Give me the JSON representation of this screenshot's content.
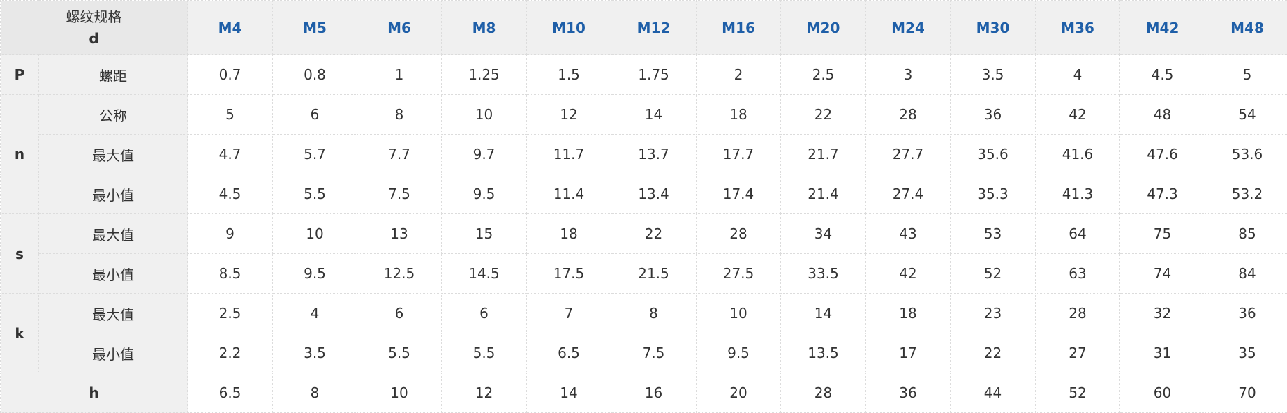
{
  "header": {
    "corner_line1": "螺纹规格",
    "corner_line2": "d",
    "sizes": [
      "M4",
      "M5",
      "M6",
      "M8",
      "M10",
      "M12",
      "M16",
      "M20",
      "M24",
      "M30",
      "M36",
      "M42",
      "M48"
    ]
  },
  "rows": {
    "p": {
      "group": "P",
      "label": "螺距",
      "values": [
        "0.7",
        "0.8",
        "1",
        "1.25",
        "1.5",
        "1.75",
        "2",
        "2.5",
        "3",
        "3.5",
        "4",
        "4.5",
        "5"
      ]
    },
    "n_nominal": {
      "group": "n",
      "label": "公称",
      "values": [
        "5",
        "6",
        "8",
        "10",
        "12",
        "14",
        "18",
        "22",
        "28",
        "36",
        "42",
        "48",
        "54"
      ]
    },
    "n_max": {
      "label": "最大值",
      "values": [
        "4.7",
        "5.7",
        "7.7",
        "9.7",
        "11.7",
        "13.7",
        "17.7",
        "21.7",
        "27.7",
        "35.6",
        "41.6",
        "47.6",
        "53.6"
      ]
    },
    "n_min": {
      "label": "最小值",
      "values": [
        "4.5",
        "5.5",
        "7.5",
        "9.5",
        "11.4",
        "13.4",
        "17.4",
        "21.4",
        "27.4",
        "35.3",
        "41.3",
        "47.3",
        "53.2"
      ]
    },
    "s_max": {
      "group": "s",
      "label": "最大值",
      "values": [
        "9",
        "10",
        "13",
        "15",
        "18",
        "22",
        "28",
        "34",
        "43",
        "53",
        "64",
        "75",
        "85"
      ]
    },
    "s_min": {
      "label": "最小值",
      "values": [
        "8.5",
        "9.5",
        "12.5",
        "14.5",
        "17.5",
        "21.5",
        "27.5",
        "33.5",
        "42",
        "52",
        "63",
        "74",
        "84"
      ]
    },
    "k_max": {
      "group": "k",
      "label": "最大值",
      "values": [
        "2.5",
        "4",
        "6",
        "6",
        "7",
        "8",
        "10",
        "14",
        "18",
        "23",
        "28",
        "32",
        "36"
      ]
    },
    "k_min": {
      "label": "最小值",
      "values": [
        "2.2",
        "3.5",
        "5.5",
        "5.5",
        "6.5",
        "7.5",
        "9.5",
        "13.5",
        "17",
        "22",
        "27",
        "31",
        "35"
      ]
    },
    "h": {
      "label": "h",
      "values": [
        "6.5",
        "8",
        "10",
        "12",
        "14",
        "16",
        "20",
        "28",
        "36",
        "44",
        "52",
        "60",
        "70"
      ]
    }
  }
}
